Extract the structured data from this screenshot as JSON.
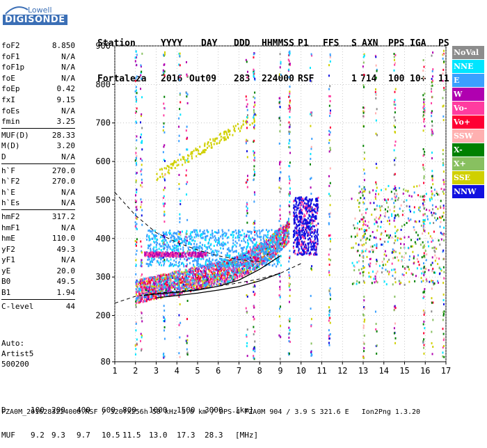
{
  "logo": {
    "line1": "Lowell",
    "line2": "DIGISONDE"
  },
  "header": {
    "row1": [
      "Station",
      "YYYY",
      "DAY",
      "DDD",
      "HHMMSS",
      "P1",
      "FFS",
      "S",
      "AXN",
      "PPS",
      "IGA",
      "PS"
    ],
    "row2": [
      "Fortaleza",
      "2016",
      "Out09",
      "283",
      "224000",
      "RSF",
      "1",
      "714",
      "100",
      "10+",
      "11"
    ]
  },
  "params": [
    {
      "k": "foF2",
      "v": "8.850"
    },
    {
      "k": "foF1",
      "v": "N/A"
    },
    {
      "k": "foF1p",
      "v": "N/A"
    },
    {
      "k": "foE",
      "v": "N/A"
    },
    {
      "k": "foEp",
      "v": "0.42"
    },
    {
      "k": "fxI",
      "v": "9.15"
    },
    {
      "k": "foEs",
      "v": "N/A"
    },
    {
      "k": "fmin",
      "v": "3.25"
    },
    {
      "sep": true
    },
    {
      "k": "MUF(D)",
      "v": "28.33"
    },
    {
      "k": "M(D)",
      "v": "3.20"
    },
    {
      "k": "D",
      "v": "N/A"
    },
    {
      "sep": true
    },
    {
      "k": "h`F",
      "v": "270.0"
    },
    {
      "k": "h`F2",
      "v": "270.0"
    },
    {
      "k": "h`E",
      "v": "N/A"
    },
    {
      "k": "h`Es",
      "v": "N/A"
    },
    {
      "sep": true
    },
    {
      "k": "hmF2",
      "v": "317.2"
    },
    {
      "k": "hmF1",
      "v": "N/A"
    },
    {
      "k": "hmE",
      "v": "110.0"
    },
    {
      "k": "yF2",
      "v": "49.3"
    },
    {
      "k": "yF1",
      "v": "N/A"
    },
    {
      "k": "yE",
      "v": "20.0"
    },
    {
      "k": "B0",
      "v": "49.5"
    },
    {
      "k": "B1",
      "v": "1.94"
    },
    {
      "sep": true
    },
    {
      "k": "C-level",
      "v": "44"
    }
  ],
  "auto": {
    "line1": "Auto:",
    "line2": "Artist5",
    "line3": "500200"
  },
  "legend": [
    {
      "label": "NoVal",
      "color": "#8c8c8c"
    },
    {
      "label": "NNE",
      "color": "#00e5ff"
    },
    {
      "label": "E",
      "color": "#3aa0ff"
    },
    {
      "label": "W",
      "color": "#b000b0"
    },
    {
      "label": "Vo-",
      "color": "#ff3ca0"
    },
    {
      "label": "Vo+",
      "color": "#ff0033"
    },
    {
      "label": "SSW",
      "color": "#ffb0b0"
    },
    {
      "label": "X-",
      "color": "#008000"
    },
    {
      "label": "X+",
      "color": "#88c060"
    },
    {
      "label": "SSE",
      "color": "#d0d000"
    },
    {
      "label": "NNW",
      "color": "#1010e0"
    }
  ],
  "chart_data": {
    "type": "scatter",
    "xlim": [
      1,
      17
    ],
    "ylim": [
      80,
      900
    ],
    "x_ticks": [
      "1",
      "2",
      "3",
      "4",
      "5",
      "6",
      "7",
      "8",
      "9",
      "10",
      "11",
      "12",
      "13",
      "14",
      "15",
      "16",
      "17"
    ],
    "y_ticks": [
      "80",
      "200",
      "300",
      "400",
      "500",
      "600",
      "700",
      "800",
      "900"
    ],
    "grid": true,
    "lines": [
      {
        "name": "",
        "style": "dashed",
        "points": [
          [
            1,
            520
          ],
          [
            2,
            460
          ],
          [
            3,
            415
          ],
          [
            4,
            390
          ],
          [
            5,
            370
          ],
          [
            6,
            355
          ],
          [
            7,
            345
          ],
          [
            8,
            340
          ]
        ]
      },
      {
        "name": "",
        "style": "dashed",
        "points": [
          [
            1,
            232
          ],
          [
            2,
            250
          ],
          [
            3,
            258
          ],
          [
            4,
            262
          ],
          [
            5,
            268
          ],
          [
            6,
            276
          ],
          [
            7,
            285
          ],
          [
            8,
            295
          ],
          [
            9,
            310
          ],
          [
            10,
            335
          ]
        ]
      },
      {
        "name": "",
        "style": "solid",
        "points": [
          [
            2.4,
            252
          ],
          [
            3,
            256
          ],
          [
            4,
            260
          ],
          [
            5,
            266
          ],
          [
            6,
            276
          ],
          [
            7,
            292
          ],
          [
            8,
            320
          ],
          [
            9,
            355
          ]
        ]
      },
      {
        "name": "",
        "style": "solid",
        "points": [
          [
            3,
            246
          ],
          [
            4,
            252
          ],
          [
            5,
            258
          ],
          [
            6,
            266
          ],
          [
            7,
            275
          ],
          [
            8,
            290
          ],
          [
            9,
            310
          ]
        ]
      }
    ]
  },
  "footer": {
    "d_label": "D",
    "d_values": [
      "100",
      "200",
      "400",
      "600",
      "800",
      "1000",
      "1500",
      "3000",
      "[km]"
    ],
    "muf_label": "MUF",
    "muf_values": [
      "9.2",
      "9.3",
      "9.7",
      "10.5",
      "11.5",
      "13.0",
      "17.3",
      "28.3",
      "[MHz]"
    ],
    "fileinfo": "FZA0M_2016283224000.RSF / 320fx256h 50 kHz 5.0 km / DPS-4 FZA0M 904 / 3.9 S 321.6 E   Ion2Png 1.3.20"
  }
}
